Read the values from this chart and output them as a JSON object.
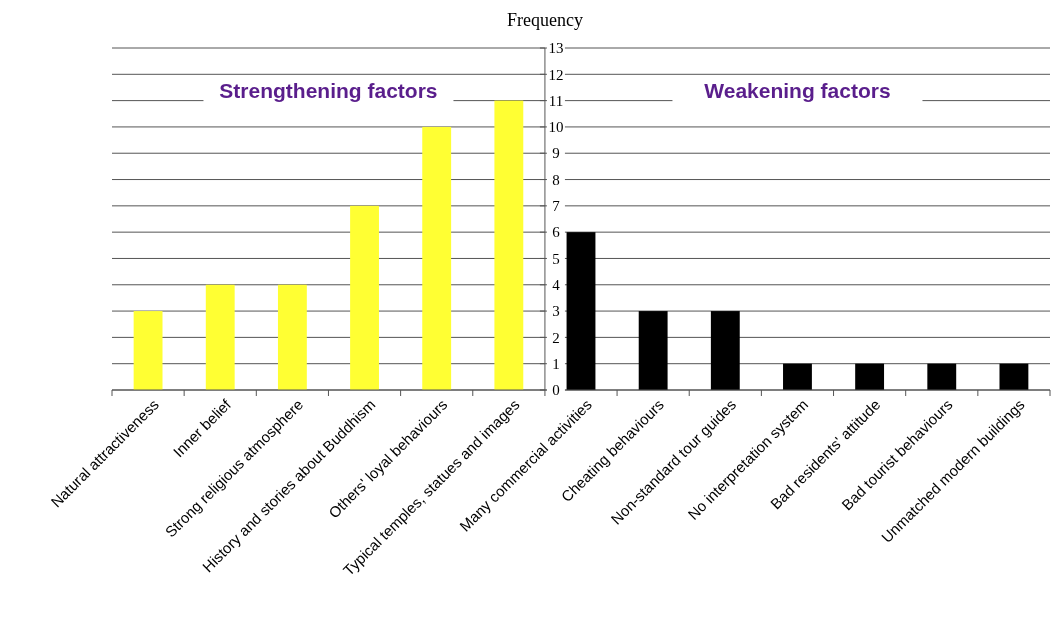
{
  "chart_data": {
    "type": "bar",
    "ylabel": "Frequency",
    "categories": [
      "Natural attractiveness",
      "Inner belief",
      "Strong religious atmosphere",
      "History and stories about Buddhism",
      "Others' loyal behaviours",
      "Typical temples, statues and images",
      "Many commercial activities",
      "Cheating behaviours",
      "Non-standard tour guides",
      "No interpretation system",
      "Bad residents' attitude",
      "Bad tourist behaviours",
      "Unmatched modern buildings"
    ],
    "values": [
      3,
      4,
      4,
      7,
      10,
      11,
      6,
      3,
      3,
      1,
      1,
      1,
      1
    ],
    "colors": [
      "#ffff33",
      "#ffff33",
      "#ffff33",
      "#ffff33",
      "#ffff33",
      "#ffff33",
      "#000000",
      "#000000",
      "#000000",
      "#000000",
      "#000000",
      "#000000",
      "#000000"
    ],
    "ylim": [
      0,
      13
    ],
    "yticks": [
      0,
      1,
      2,
      3,
      4,
      5,
      6,
      7,
      8,
      9,
      10,
      11,
      12,
      13
    ],
    "grid": "y",
    "annotations": [
      "Strengthening factors",
      "Weakening factors"
    ]
  }
}
